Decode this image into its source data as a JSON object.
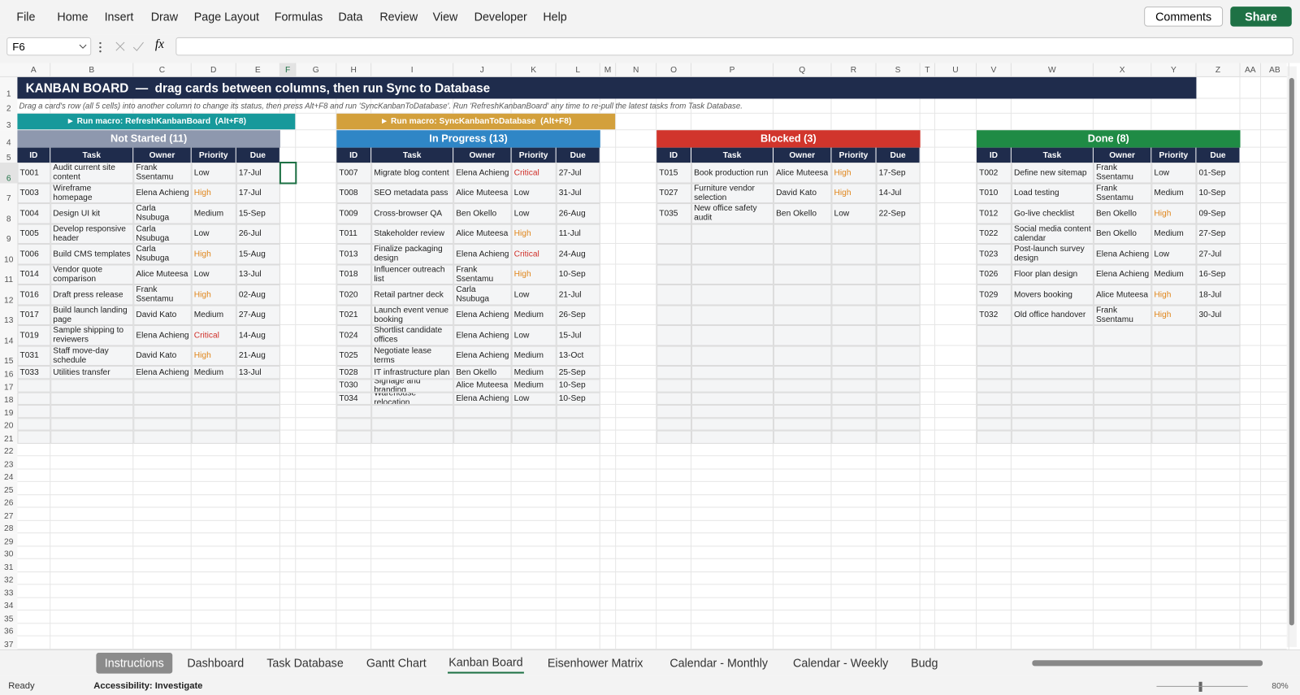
{
  "menu": [
    "File",
    "Home",
    "Insert",
    "Draw",
    "Page Layout",
    "Formulas",
    "Data",
    "Review",
    "View",
    "Developer",
    "Help"
  ],
  "buttons": {
    "comments": "Comments",
    "share": "Share"
  },
  "formula_bar": {
    "name_box": "F6",
    "function_label": "fx"
  },
  "columns": [
    "A",
    "B",
    "C",
    "D",
    "E",
    "F",
    "G",
    "H",
    "I",
    "J",
    "K",
    "L",
    "M",
    "N",
    "O",
    "P",
    "Q",
    "R",
    "S",
    "T",
    "U",
    "V",
    "W",
    "X",
    "Y",
    "Z",
    "AA",
    "AB"
  ],
  "rows": [
    1,
    2,
    3,
    4,
    5,
    6,
    7,
    8,
    9,
    10,
    11,
    12,
    13,
    14,
    15,
    16,
    17,
    18,
    19,
    20,
    21,
    22,
    23,
    24,
    25,
    26,
    27,
    28,
    29,
    30,
    31,
    32,
    33,
    34,
    35,
    36,
    37
  ],
  "sheet": {
    "title": "KANBAN BOARD  —  drag cards between columns, then run Sync to Database",
    "instructions": "Drag a card's row (all 5 cells) into another column to change its status, then press Alt+F8 and run 'SyncKanbanToDatabase'. Run 'RefreshKanbanBoard' any time to re-pull the latest tasks from Task Database.",
    "macros": [
      {
        "label": "► Run macro: RefreshKanbanBoard  (Alt+F8)",
        "color": "#17999b"
      },
      {
        "label": "► Run macro: SyncKanbanToDatabase  (Alt+F8)",
        "color": "#d3a03c"
      }
    ],
    "priority_colors": {
      "High": "#e0861c",
      "Critical": "#d0302a"
    },
    "boards": [
      {
        "title": "Not Started (11)",
        "color": "#8e98ae",
        "headers": [
          "ID",
          "Task",
          "Owner",
          "Priority",
          "Due"
        ],
        "cards": [
          [
            "T001",
            "Audit current site content",
            "Frank Ssentamu",
            "Low",
            "17-Jul"
          ],
          [
            "T003",
            "Wireframe homepage",
            "Elena Achieng",
            "High",
            "17-Jul"
          ],
          [
            "T004",
            "Design UI kit",
            "Carla Nsubuga",
            "Medium",
            "15-Sep"
          ],
          [
            "T005",
            "Develop responsive header",
            "Carla Nsubuga",
            "Low",
            "26-Jul"
          ],
          [
            "T006",
            "Build CMS templates",
            "Carla Nsubuga",
            "High",
            "15-Aug"
          ],
          [
            "T014",
            "Vendor quote comparison",
            "Alice Muteesa",
            "Low",
            "13-Jul"
          ],
          [
            "T016",
            "Draft press release",
            "Frank Ssentamu",
            "High",
            "02-Aug"
          ],
          [
            "T017",
            "Build launch landing page",
            "David Kato",
            "Medium",
            "27-Aug"
          ],
          [
            "T019",
            "Sample shipping to reviewers",
            "Elena Achieng",
            "Critical",
            "14-Aug"
          ],
          [
            "T031",
            "Staff move-day schedule",
            "David Kato",
            "High",
            "21-Aug"
          ],
          [
            "T033",
            "Utilities transfer",
            "Elena Achieng",
            "Medium",
            "13-Jul"
          ]
        ]
      },
      {
        "title": "In Progress (13)",
        "color": "#2f86c6",
        "headers": [
          "ID",
          "Task",
          "Owner",
          "Priority",
          "Due"
        ],
        "cards": [
          [
            "T007",
            "Migrate blog content",
            "Elena Achieng",
            "Critical",
            "27-Jul"
          ],
          [
            "T008",
            "SEO metadata pass",
            "Alice Muteesa",
            "Low",
            "31-Jul"
          ],
          [
            "T009",
            "Cross-browser QA",
            "Ben Okello",
            "Low",
            "26-Aug"
          ],
          [
            "T011",
            "Stakeholder review",
            "Alice Muteesa",
            "High",
            "11-Jul"
          ],
          [
            "T013",
            "Finalize packaging design",
            "Elena Achieng",
            "Critical",
            "24-Aug"
          ],
          [
            "T018",
            "Influencer outreach list",
            "Frank Ssentamu",
            "High",
            "10-Sep"
          ],
          [
            "T020",
            "Retail partner deck",
            "Carla Nsubuga",
            "Low",
            "21-Jul"
          ],
          [
            "T021",
            "Launch event venue booking",
            "Elena Achieng",
            "Medium",
            "26-Sep"
          ],
          [
            "T024",
            "Shortlist candidate offices",
            "Elena Achieng",
            "Low",
            "15-Jul"
          ],
          [
            "T025",
            "Negotiate lease terms",
            "Elena Achieng",
            "Medium",
            "13-Oct"
          ],
          [
            "T028",
            "IT infrastructure plan",
            "Ben Okello",
            "Medium",
            "25-Sep"
          ],
          [
            "T030",
            "Signage and branding",
            "Alice Muteesa",
            "Medium",
            "10-Sep"
          ],
          [
            "T034",
            "Warehouse relocation",
            "Elena Achieng",
            "Low",
            "10-Sep"
          ]
        ]
      },
      {
        "title": "Blocked (3)",
        "color": "#d1352c",
        "headers": [
          "ID",
          "Task",
          "Owner",
          "Priority",
          "Due"
        ],
        "cards": [
          [
            "T015",
            "Book production run",
            "Alice Muteesa",
            "High",
            "17-Sep"
          ],
          [
            "T027",
            "Furniture vendor selection",
            "David Kato",
            "High",
            "14-Jul"
          ],
          [
            "T035",
            "New office safety audit",
            "Ben Okello",
            "Low",
            "22-Sep"
          ]
        ]
      },
      {
        "title": "Done (8)",
        "color": "#1f8b45",
        "headers": [
          "ID",
          "Task",
          "Owner",
          "Priority",
          "Due"
        ],
        "cards": [
          [
            "T002",
            "Define new sitemap",
            "Frank Ssentamu",
            "Low",
            "01-Sep"
          ],
          [
            "T010",
            "Load testing",
            "Frank Ssentamu",
            "Medium",
            "10-Sep"
          ],
          [
            "T012",
            "Go-live checklist",
            "Ben Okello",
            "High",
            "09-Sep"
          ],
          [
            "T022",
            "Social media content calendar",
            "Ben Okello",
            "Medium",
            "27-Sep"
          ],
          [
            "T023",
            "Post-launch survey design",
            "Elena Achieng",
            "Low",
            "27-Jul"
          ],
          [
            "T026",
            "Floor plan design",
            "Elena Achieng",
            "Medium",
            "16-Sep"
          ],
          [
            "T029",
            "Movers booking",
            "Alice Muteesa",
            "High",
            "18-Jul"
          ],
          [
            "T032",
            "Old office handover",
            "Frank Ssentamu",
            "High",
            "30-Jul"
          ]
        ]
      }
    ]
  },
  "tabs": {
    "items": [
      "Instructions",
      "Dashboard",
      "Task Database",
      "Gantt Chart",
      "Kanban Board",
      "Eisenhower Matrix",
      "Calendar - Monthly",
      "Calendar - Weekly",
      "Budg"
    ],
    "active": 4,
    "highlighted": 0
  },
  "status": {
    "ready": "Ready",
    "accessibility": "Accessibility: Investigate",
    "zoom": "80%"
  }
}
